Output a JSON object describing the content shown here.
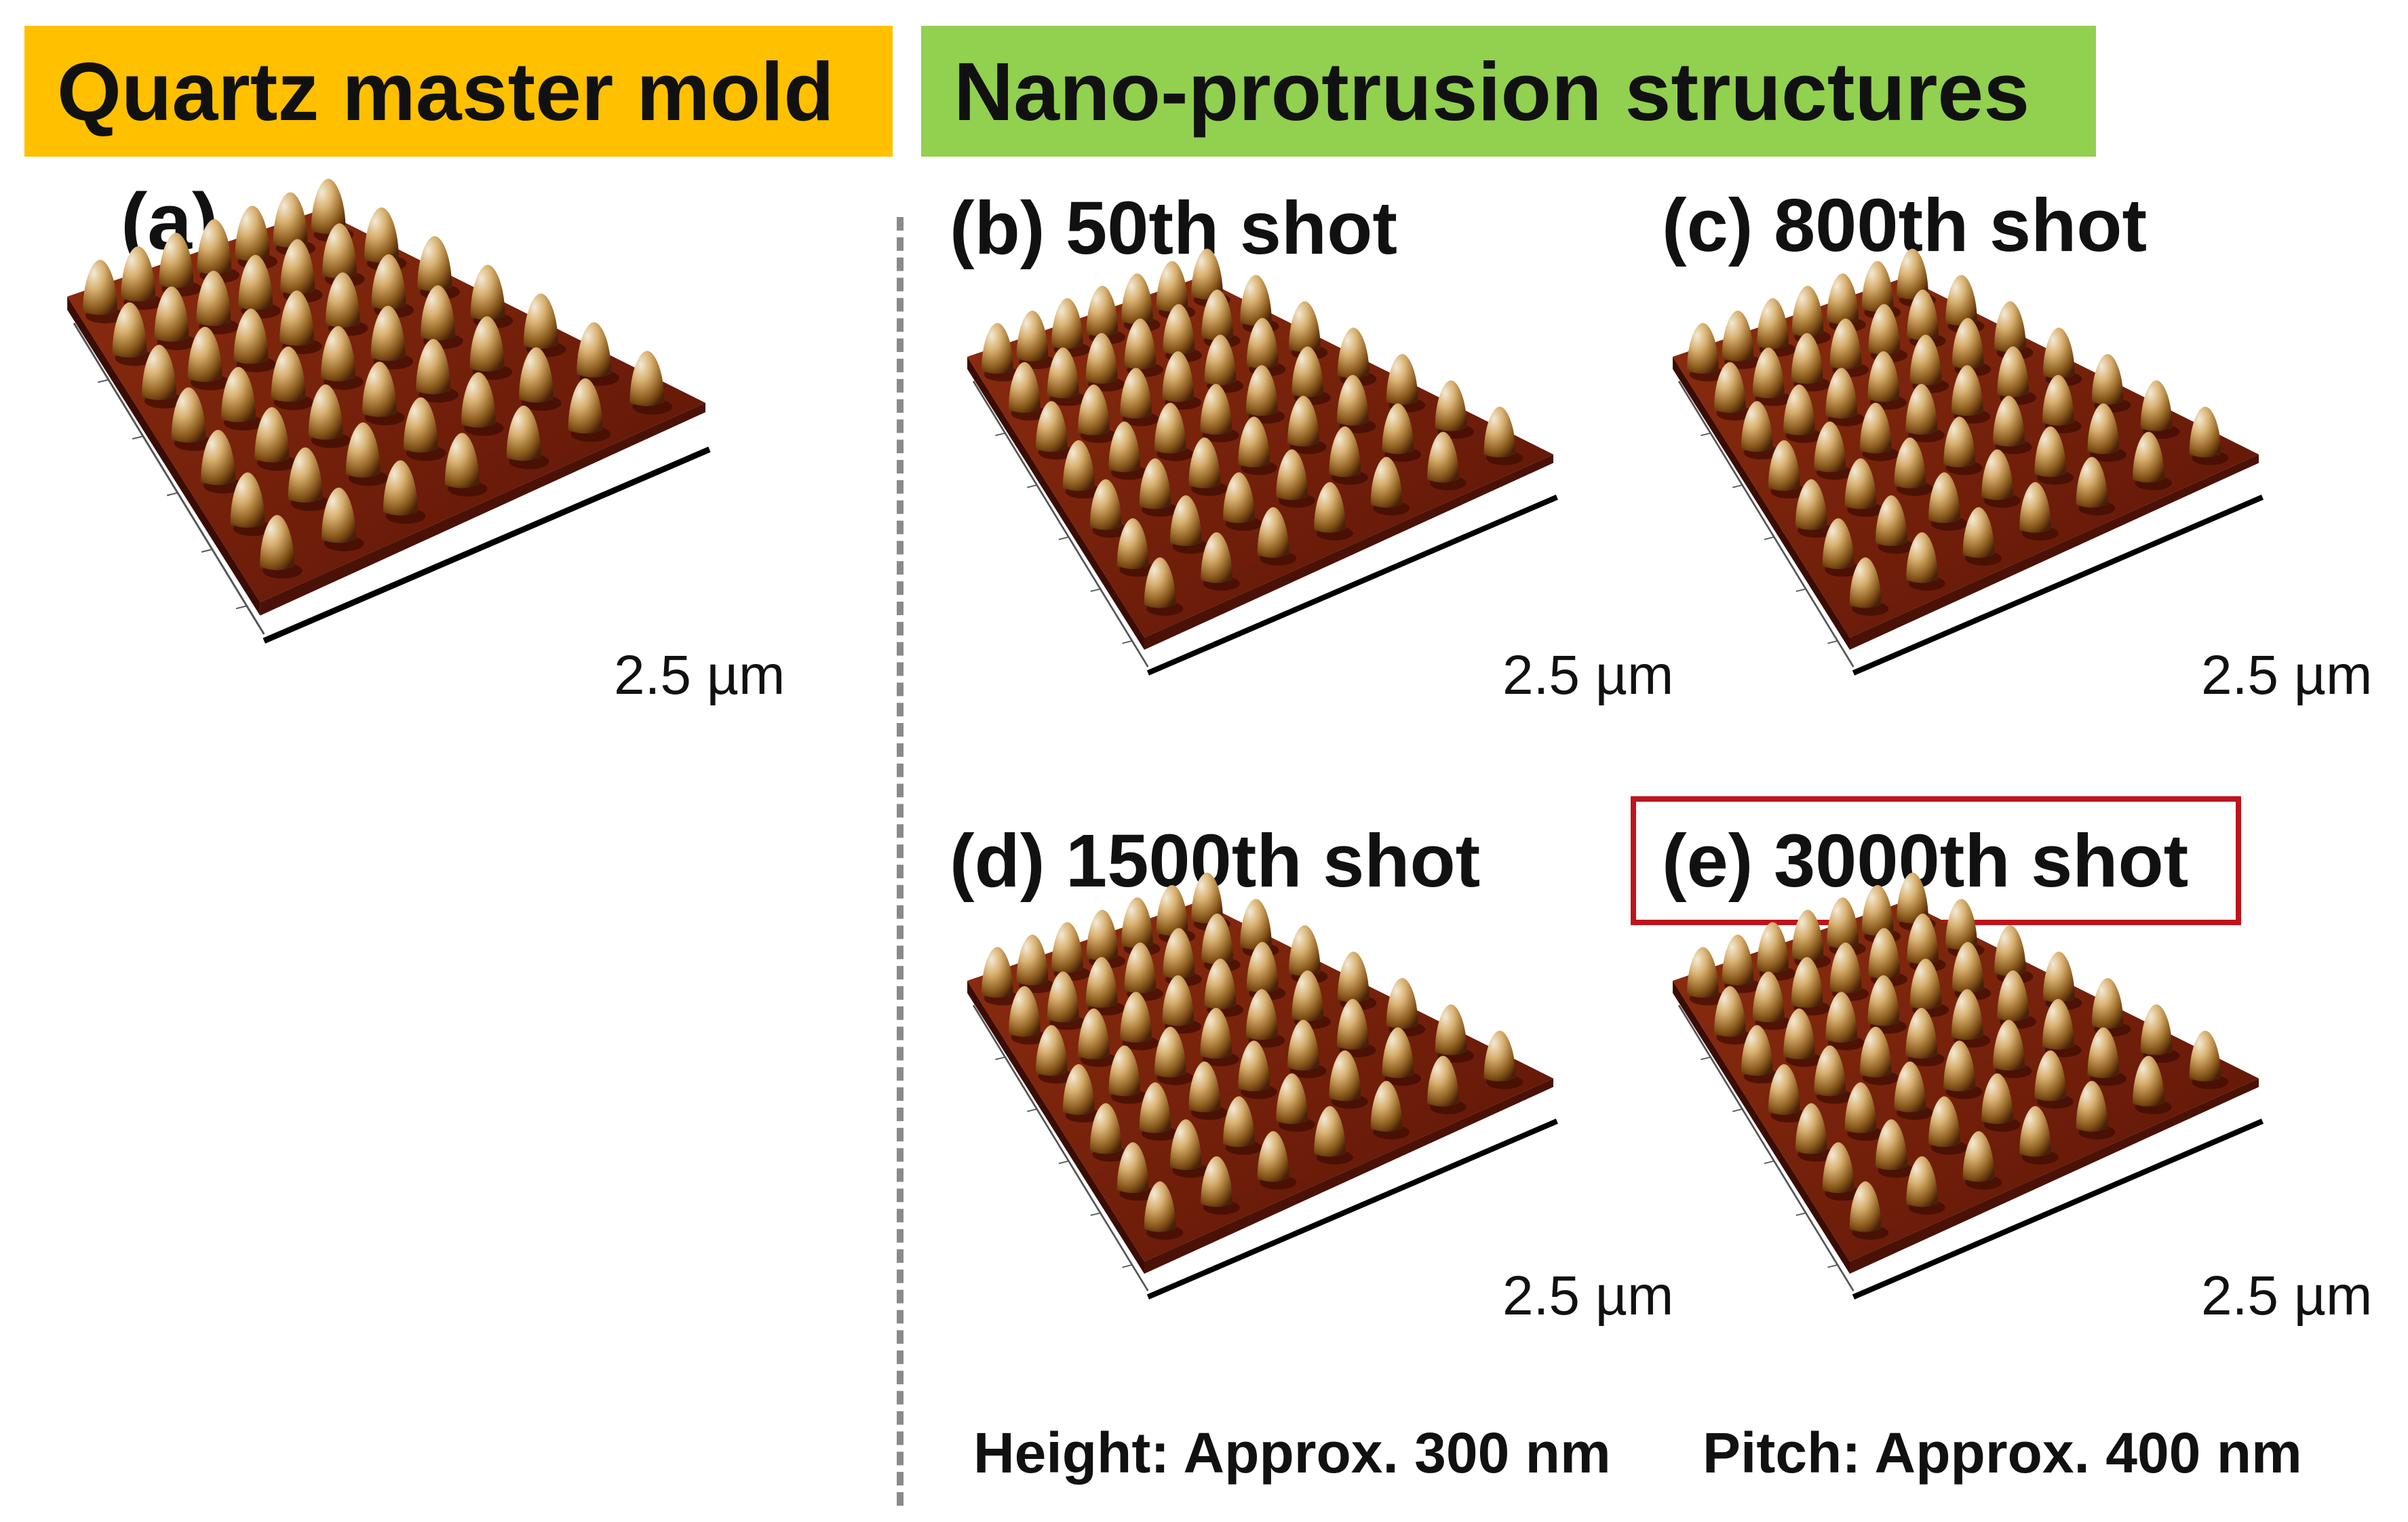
{
  "banners": {
    "left": {
      "text": "Quartz master mold",
      "color": "#FFC000"
    },
    "right": {
      "text": "Nano-protrusion structures",
      "color": "#92D050"
    }
  },
  "panels": [
    {
      "label": "(a)",
      "scale_bar": "2.5 µm"
    },
    {
      "label": "(b) 50th shot",
      "scale_bar": "2.5 µm"
    },
    {
      "label": "(c) 800th shot",
      "scale_bar": "2.5 µm"
    },
    {
      "label": "(d) 1500th shot",
      "scale_bar": "2.5 µm"
    },
    {
      "label": "(e) 3000th shot",
      "scale_bar": "2.5 µm",
      "highlight_color": "#C0141C"
    }
  ],
  "footer": {
    "height": "Height: Approx. 300 nm",
    "pitch": "Pitch: Approx. 400 nm"
  },
  "colors": {
    "surface_dark": "#5a1306",
    "surface_mid": "#8e2e10",
    "peak_light": "#f3ead6",
    "divider": "#8a8a8a"
  }
}
